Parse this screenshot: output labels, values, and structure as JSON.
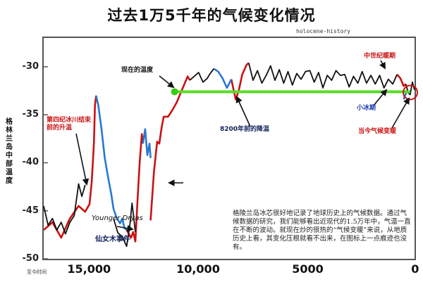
{
  "title": "过去1万5千年的气候变化情况",
  "credit": "holocene-history",
  "chart_data": {
    "type": "line",
    "ylabel": "格林兰岛中部温度",
    "xstart_label": "至今时间",
    "xlim": [
      17000,
      0
    ],
    "ylim": [
      -50,
      -27
    ],
    "xticks": [
      "15,000",
      "10,000",
      "5000",
      "0"
    ],
    "yticks": [
      -30,
      -35,
      -40,
      -45,
      -50
    ],
    "present_temp": -32.6,
    "series": [
      {
        "color": "#cc1111",
        "segments": [
          [
            [
              17000,
              -47
            ],
            [
              16600,
              -46.2
            ],
            [
              16200,
              -47.8
            ],
            [
              15800,
              -45.8
            ],
            [
              15400,
              -44.5
            ],
            [
              15100,
              -45.1
            ],
            [
              14900,
              -44.3
            ],
            [
              14800,
              -42
            ],
            [
              14700,
              -38
            ],
            [
              14650,
              -34
            ],
            [
              14600,
              -33
            ]
          ],
          [
            [
              13200,
              -47
            ],
            [
              13000,
              -47.8
            ],
            [
              12900,
              -47.2
            ],
            [
              12800,
              -48.2
            ],
            [
              12700,
              -44
            ],
            [
              12600,
              -40
            ],
            [
              12500,
              -37
            ],
            [
              12450,
              -38
            ]
          ],
          [
            [
              12100,
              -46
            ],
            [
              11950,
              -41
            ],
            [
              11800,
              -37.8
            ],
            [
              11700,
              -38
            ],
            [
              11600,
              -36.4
            ],
            [
              11500,
              -35.2
            ],
            [
              11300,
              -35.2
            ],
            [
              11100,
              -34.5
            ],
            [
              10900,
              -33.7
            ],
            [
              10700,
              -32.6
            ],
            [
              10550,
              -31.8
            ],
            [
              10400,
              -31
            ],
            [
              10300,
              -31.4
            ]
          ],
          [
            [
              8400,
              -31.3
            ],
            [
              8200,
              -33.4
            ],
            [
              8050,
              -32.4
            ],
            [
              7900,
              -30.8
            ],
            [
              7700,
              -29.8
            ],
            [
              7600,
              -29.6
            ]
          ],
          [
            [
              800,
              -30.8
            ],
            [
              650,
              -31.2
            ],
            [
              500,
              -32
            ],
            [
              400,
              -31.8
            ]
          ]
        ]
      },
      {
        "color": "#2a78d0",
        "segments": [
          [
            [
              14600,
              -33
            ],
            [
              14500,
              -34
            ],
            [
              14350,
              -36.5
            ],
            [
              14200,
              -39.5
            ],
            [
              14050,
              -41.5
            ],
            [
              13900,
              -43.3
            ],
            [
              13800,
              -44.8
            ],
            [
              13650,
              -45.8
            ],
            [
              13500,
              -46.3
            ],
            [
              13400,
              -45.8
            ],
            [
              13300,
              -46.8
            ],
            [
              13200,
              -47
            ]
          ],
          [
            [
              12450,
              -38
            ],
            [
              12350,
              -36.5
            ],
            [
              12250,
              -39.2
            ],
            [
              12150,
              -38
            ],
            [
              12100,
              -39.5
            ]
          ],
          [
            [
              9200,
              -30.2
            ],
            [
              9000,
              -30.5
            ],
            [
              8800,
              -31.2
            ],
            [
              8600,
              -32.2
            ],
            [
              8400,
              -31.3
            ]
          ],
          [
            [
              500,
              -33.4
            ],
            [
              350,
              -32.5
            ],
            [
              200,
              -32.9
            ]
          ]
        ]
      },
      {
        "color": "#111111",
        "segments": [
          [
            [
              17000,
              -44.5
            ],
            [
              16800,
              -46.5
            ],
            [
              16600,
              -45.8
            ],
            [
              16400,
              -47
            ],
            [
              16200,
              -46.2
            ],
            [
              16000,
              -47.4
            ],
            [
              15800,
              -46.2
            ],
            [
              15600,
              -45.5
            ],
            [
              15400,
              -42.2
            ],
            [
              15250,
              -43.5
            ],
            [
              15100,
              -42.3
            ]
          ],
          [
            [
              13800,
              -45.8
            ],
            [
              13600,
              -47.3
            ],
            [
              13400,
              -47.7
            ],
            [
              13200,
              -48.7
            ],
            [
              13050,
              -46.5
            ],
            [
              12950,
              -44.2
            ],
            [
              12800,
              -47.2
            ]
          ],
          [
            [
              10300,
              -31.4
            ],
            [
              10100,
              -31
            ],
            [
              9900,
              -30.6
            ],
            [
              9700,
              -31.6
            ],
            [
              9500,
              -31.2
            ],
            [
              9400,
              -30.8
            ],
            [
              9300,
              -30.5
            ],
            [
              9200,
              -30.2
            ]
          ],
          [
            [
              7600,
              -29.6
            ],
            [
              7400,
              -31.4
            ],
            [
              7200,
              -30.4
            ],
            [
              7000,
              -31.7
            ],
            [
              6800,
              -30.9
            ],
            [
              6600,
              -29.9
            ],
            [
              6400,
              -31.4
            ],
            [
              6200,
              -30.3
            ],
            [
              6000,
              -31.7
            ],
            [
              5800,
              -30.5
            ],
            [
              5600,
              -31.9
            ],
            [
              5400,
              -30.7
            ],
            [
              5200,
              -31.3
            ],
            [
              5000,
              -30.5
            ],
            [
              4800,
              -30.4
            ],
            [
              4600,
              -31.6
            ],
            [
              4400,
              -30.6
            ],
            [
              4200,
              -32.2
            ],
            [
              4000,
              -30.9
            ],
            [
              3800,
              -31.4
            ],
            [
              3600,
              -30.4
            ],
            [
              3400,
              -30.9
            ],
            [
              3200,
              -30.8
            ],
            [
              3000,
              -32.1
            ],
            [
              2800,
              -31
            ],
            [
              2600,
              -31.7
            ],
            [
              2400,
              -30.5
            ],
            [
              2200,
              -31.7
            ],
            [
              2000,
              -30.9
            ],
            [
              1800,
              -31.8
            ],
            [
              1600,
              -30.9
            ],
            [
              1400,
              -32.2
            ],
            [
              1200,
              -31.3
            ],
            [
              1000,
              -31.8
            ],
            [
              800,
              -30.8
            ]
          ],
          [
            [
              400,
              -31.8
            ],
            [
              300,
              -32.6
            ],
            [
              200,
              -32.9
            ],
            [
              100,
              -31.6
            ],
            [
              0,
              -32.4
            ]
          ]
        ]
      }
    ],
    "annotations": [
      {
        "key": "present",
        "text": "现在的温度"
      },
      {
        "key": "preboreal",
        "text": "第四纪冰川结束前的升温"
      },
      {
        "key": "event8200",
        "text": "8200年前的降温"
      },
      {
        "key": "youngerDryasEn",
        "text": "Younger Dryas"
      },
      {
        "key": "youngerDryasZh",
        "text": "仙女木事件"
      },
      {
        "key": "medieval",
        "text": "中世纪暖期"
      },
      {
        "key": "littleIceAge",
        "text": "小冰期"
      },
      {
        "key": "modernWarming",
        "text": "当今气候变暖"
      }
    ],
    "note": "格陵兰岛冰芯很好地记录了地球历史上的气候数据。通过气候数据的研究，我们能够看出近现代的1.5万年中，气温一直在不断的波动。就现在炒的很热的“气候变暖”来说，从地质历史上看，其变化压根就看不出来，在图标上一点痕迹也没有。"
  }
}
